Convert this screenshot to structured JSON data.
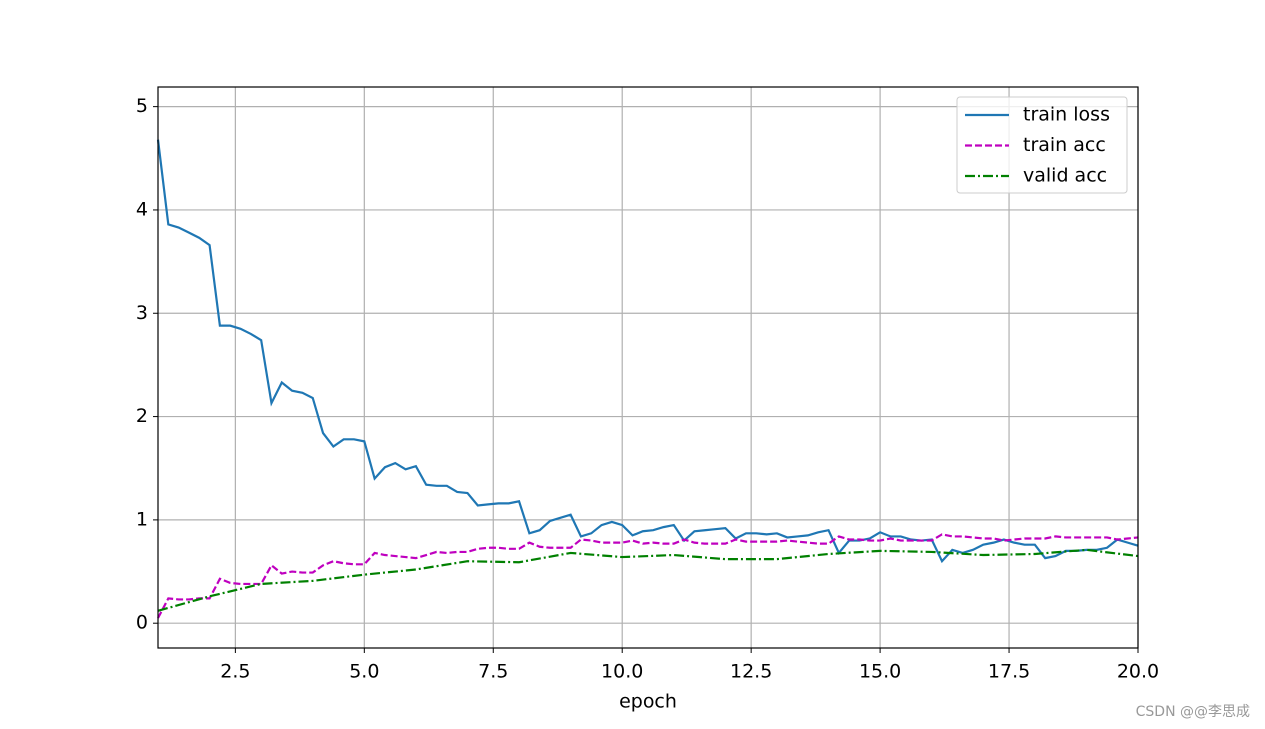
{
  "chart_data": {
    "type": "line",
    "xlabel": "epoch",
    "xlim": [
      1,
      20
    ],
    "ylim": [
      -0.24,
      5.19
    ],
    "xticks": [
      2.5,
      {
        "value": 5,
        "label": "5.0"
      },
      7.5,
      {
        "value": 10,
        "label": "10.0"
      },
      12.5,
      {
        "value": 15,
        "label": "15.0"
      },
      17.5,
      {
        "value": 20,
        "label": "20.0"
      }
    ],
    "yticks": [
      0,
      1,
      2,
      3,
      4,
      5
    ],
    "grid": true,
    "legend": "upper right",
    "series": [
      {
        "name": "train loss",
        "color": "#1f77b4",
        "linestyle": "solid",
        "x": [
          1.0,
          1.2,
          1.4,
          1.6,
          1.8,
          2.0,
          2.2,
          2.4,
          2.6,
          2.8,
          3.0,
          3.2,
          3.4,
          3.6,
          3.8,
          4.0,
          4.2,
          4.4,
          4.6,
          4.8,
          5.0,
          5.2,
          5.4,
          5.6,
          5.8,
          6.0,
          6.2,
          6.4,
          6.6,
          6.8,
          7.0,
          7.2,
          7.4,
          7.6,
          7.8,
          8.0,
          8.2,
          8.4,
          8.6,
          8.8,
          9.0,
          9.2,
          9.4,
          9.6,
          9.8,
          10.0,
          10.2,
          10.4,
          10.6,
          10.8,
          11.0,
          11.2,
          11.4,
          11.6,
          11.8,
          12.0,
          12.2,
          12.4,
          12.6,
          12.8,
          13.0,
          13.2,
          13.4,
          13.6,
          13.8,
          14.0,
          14.2,
          14.4,
          14.6,
          14.8,
          15.0,
          15.2,
          15.4,
          15.6,
          15.8,
          16.0,
          16.2,
          16.4,
          16.6,
          16.8,
          17.0,
          17.2,
          17.4,
          17.6,
          17.8,
          18.0,
          18.2,
          18.4,
          18.6,
          18.8,
          19.0,
          19.2,
          19.4,
          19.6,
          19.8,
          20.0
        ],
        "values": [
          4.68,
          3.86,
          3.83,
          3.78,
          3.73,
          3.66,
          2.88,
          2.88,
          2.85,
          2.8,
          2.74,
          2.13,
          2.33,
          2.25,
          2.23,
          2.18,
          1.84,
          1.71,
          1.78,
          1.78,
          1.76,
          1.4,
          1.51,
          1.55,
          1.49,
          1.52,
          1.34,
          1.33,
          1.33,
          1.27,
          1.26,
          1.14,
          1.15,
          1.16,
          1.16,
          1.18,
          0.87,
          0.9,
          0.99,
          1.02,
          1.05,
          0.84,
          0.87,
          0.95,
          0.98,
          0.95,
          0.85,
          0.89,
          0.9,
          0.93,
          0.95,
          0.8,
          0.89,
          0.9,
          0.91,
          0.92,
          0.82,
          0.87,
          0.87,
          0.86,
          0.87,
          0.83,
          0.84,
          0.85,
          0.88,
          0.9,
          0.68,
          0.8,
          0.8,
          0.82,
          0.88,
          0.84,
          0.84,
          0.81,
          0.8,
          0.81,
          0.6,
          0.71,
          0.68,
          0.71,
          0.76,
          0.78,
          0.81,
          0.78,
          0.76,
          0.76,
          0.63,
          0.65,
          0.7,
          0.7,
          0.71,
          0.71,
          0.73,
          0.81,
          0.78,
          0.75
        ]
      },
      {
        "name": "train acc",
        "color": "#bf00bf",
        "linestyle": "dashed",
        "x": [
          1.0,
          1.2,
          1.4,
          1.6,
          1.8,
          2.0,
          2.2,
          2.4,
          2.6,
          2.8,
          3.0,
          3.2,
          3.4,
          3.6,
          3.8,
          4.0,
          4.2,
          4.4,
          4.6,
          4.8,
          5.0,
          5.2,
          5.4,
          5.6,
          5.8,
          6.0,
          6.2,
          6.4,
          6.6,
          6.8,
          7.0,
          7.2,
          7.4,
          7.6,
          7.8,
          8.0,
          8.2,
          8.4,
          8.6,
          8.8,
          9.0,
          9.2,
          9.4,
          9.6,
          9.8,
          10.0,
          10.2,
          10.4,
          10.6,
          10.8,
          11.0,
          11.2,
          11.4,
          11.6,
          11.8,
          12.0,
          12.2,
          12.4,
          12.6,
          12.8,
          13.0,
          13.2,
          13.4,
          13.6,
          13.8,
          14.0,
          14.2,
          14.4,
          14.6,
          14.8,
          15.0,
          15.2,
          15.4,
          15.6,
          15.8,
          16.0,
          16.2,
          16.4,
          16.6,
          16.8,
          17.0,
          17.2,
          17.4,
          17.6,
          17.8,
          18.0,
          18.2,
          18.4,
          18.6,
          18.8,
          19.0,
          19.2,
          19.4,
          19.6,
          19.8,
          20.0
        ],
        "values": [
          0.05,
          0.24,
          0.23,
          0.23,
          0.24,
          0.24,
          0.43,
          0.39,
          0.38,
          0.38,
          0.38,
          0.56,
          0.48,
          0.5,
          0.49,
          0.49,
          0.56,
          0.6,
          0.58,
          0.57,
          0.57,
          0.68,
          0.66,
          0.65,
          0.64,
          0.63,
          0.66,
          0.69,
          0.68,
          0.69,
          0.69,
          0.72,
          0.73,
          0.73,
          0.72,
          0.72,
          0.78,
          0.74,
          0.73,
          0.73,
          0.73,
          0.81,
          0.8,
          0.78,
          0.78,
          0.78,
          0.8,
          0.77,
          0.78,
          0.77,
          0.77,
          0.81,
          0.78,
          0.77,
          0.77,
          0.77,
          0.81,
          0.79,
          0.79,
          0.79,
          0.79,
          0.8,
          0.79,
          0.78,
          0.77,
          0.77,
          0.84,
          0.81,
          0.81,
          0.8,
          0.8,
          0.82,
          0.8,
          0.8,
          0.8,
          0.8,
          0.86,
          0.84,
          0.84,
          0.83,
          0.82,
          0.82,
          0.8,
          0.81,
          0.82,
          0.82,
          0.82,
          0.84,
          0.83,
          0.83,
          0.83,
          0.83,
          0.83,
          0.81,
          0.82,
          0.83
        ]
      },
      {
        "name": "valid acc",
        "color": "#008000",
        "linestyle": "dashdot",
        "x": [
          1,
          2,
          3,
          4,
          5,
          6,
          7,
          8,
          9,
          10,
          11,
          12,
          13,
          14,
          15,
          16,
          17,
          18,
          19,
          20
        ],
        "values": [
          0.12,
          0.26,
          0.38,
          0.41,
          0.47,
          0.52,
          0.6,
          0.59,
          0.68,
          0.64,
          0.66,
          0.62,
          0.62,
          0.67,
          0.7,
          0.69,
          0.66,
          0.67,
          0.71,
          0.65
        ]
      }
    ]
  },
  "watermark": "CSDN @@李思成"
}
